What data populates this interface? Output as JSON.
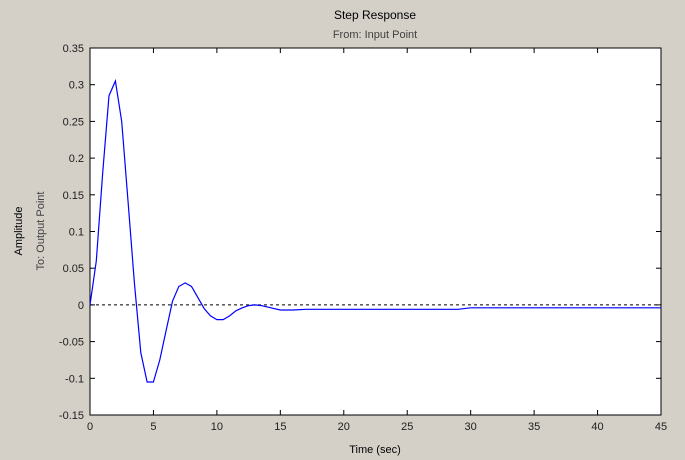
{
  "chart_data": {
    "type": "line",
    "title": "Step Response",
    "subtitle": "From: Input Point",
    "xlabel": "Time (sec)",
    "ylabel": "Amplitude",
    "ylabel2": "To: Output Point",
    "xlim": [
      0,
      45
    ],
    "ylim": [
      -0.15,
      0.35
    ],
    "xticks": [
      0,
      5,
      10,
      15,
      20,
      25,
      30,
      35,
      40,
      45
    ],
    "yticks": [
      -0.15,
      -0.1,
      -0.05,
      0,
      0.05,
      0.1,
      0.15,
      0.2,
      0.25,
      0.3,
      0.35
    ],
    "xtick_labels": [
      "0",
      "5",
      "10",
      "15",
      "20",
      "25",
      "30",
      "35",
      "40",
      "45"
    ],
    "ytick_labels": [
      "-0.15",
      "-0.1",
      "-0.05",
      "0",
      "0.05",
      "0.1",
      "0.15",
      "0.2",
      "0.25",
      "0.3",
      "0.35"
    ],
    "grid": false,
    "reference_line": 0,
    "colors": {
      "series": "#0000ff",
      "reference": "#000000",
      "background": "#d4d0c8",
      "plot_area": "#ffffff"
    },
    "series": [
      {
        "x": [
          0,
          0.5,
          1.0,
          1.5,
          2.0,
          2.5,
          3.0,
          3.5,
          4.0,
          4.5,
          5.0,
          5.5,
          6.0,
          6.5,
          7.0,
          7.5,
          8.0,
          8.5,
          9.0,
          9.5,
          10.0,
          10.5,
          11.0,
          11.5,
          12.0,
          12.5,
          13.0,
          13.5,
          14.0,
          15.0,
          16.0,
          17.0,
          20.0,
          25.0,
          29.0,
          30.0,
          35.0,
          40.0,
          45.0
        ],
        "y": [
          0,
          0.06,
          0.18,
          0.285,
          0.305,
          0.25,
          0.14,
          0.03,
          -0.065,
          -0.105,
          -0.105,
          -0.075,
          -0.035,
          0.005,
          0.025,
          0.03,
          0.025,
          0.01,
          -0.005,
          -0.015,
          -0.02,
          -0.02,
          -0.015,
          -0.008,
          -0.004,
          -0.001,
          0.0,
          -0.001,
          -0.003,
          -0.007,
          -0.007,
          -0.006,
          -0.006,
          -0.006,
          -0.006,
          -0.004,
          -0.004,
          -0.004,
          -0.004
        ]
      }
    ]
  }
}
